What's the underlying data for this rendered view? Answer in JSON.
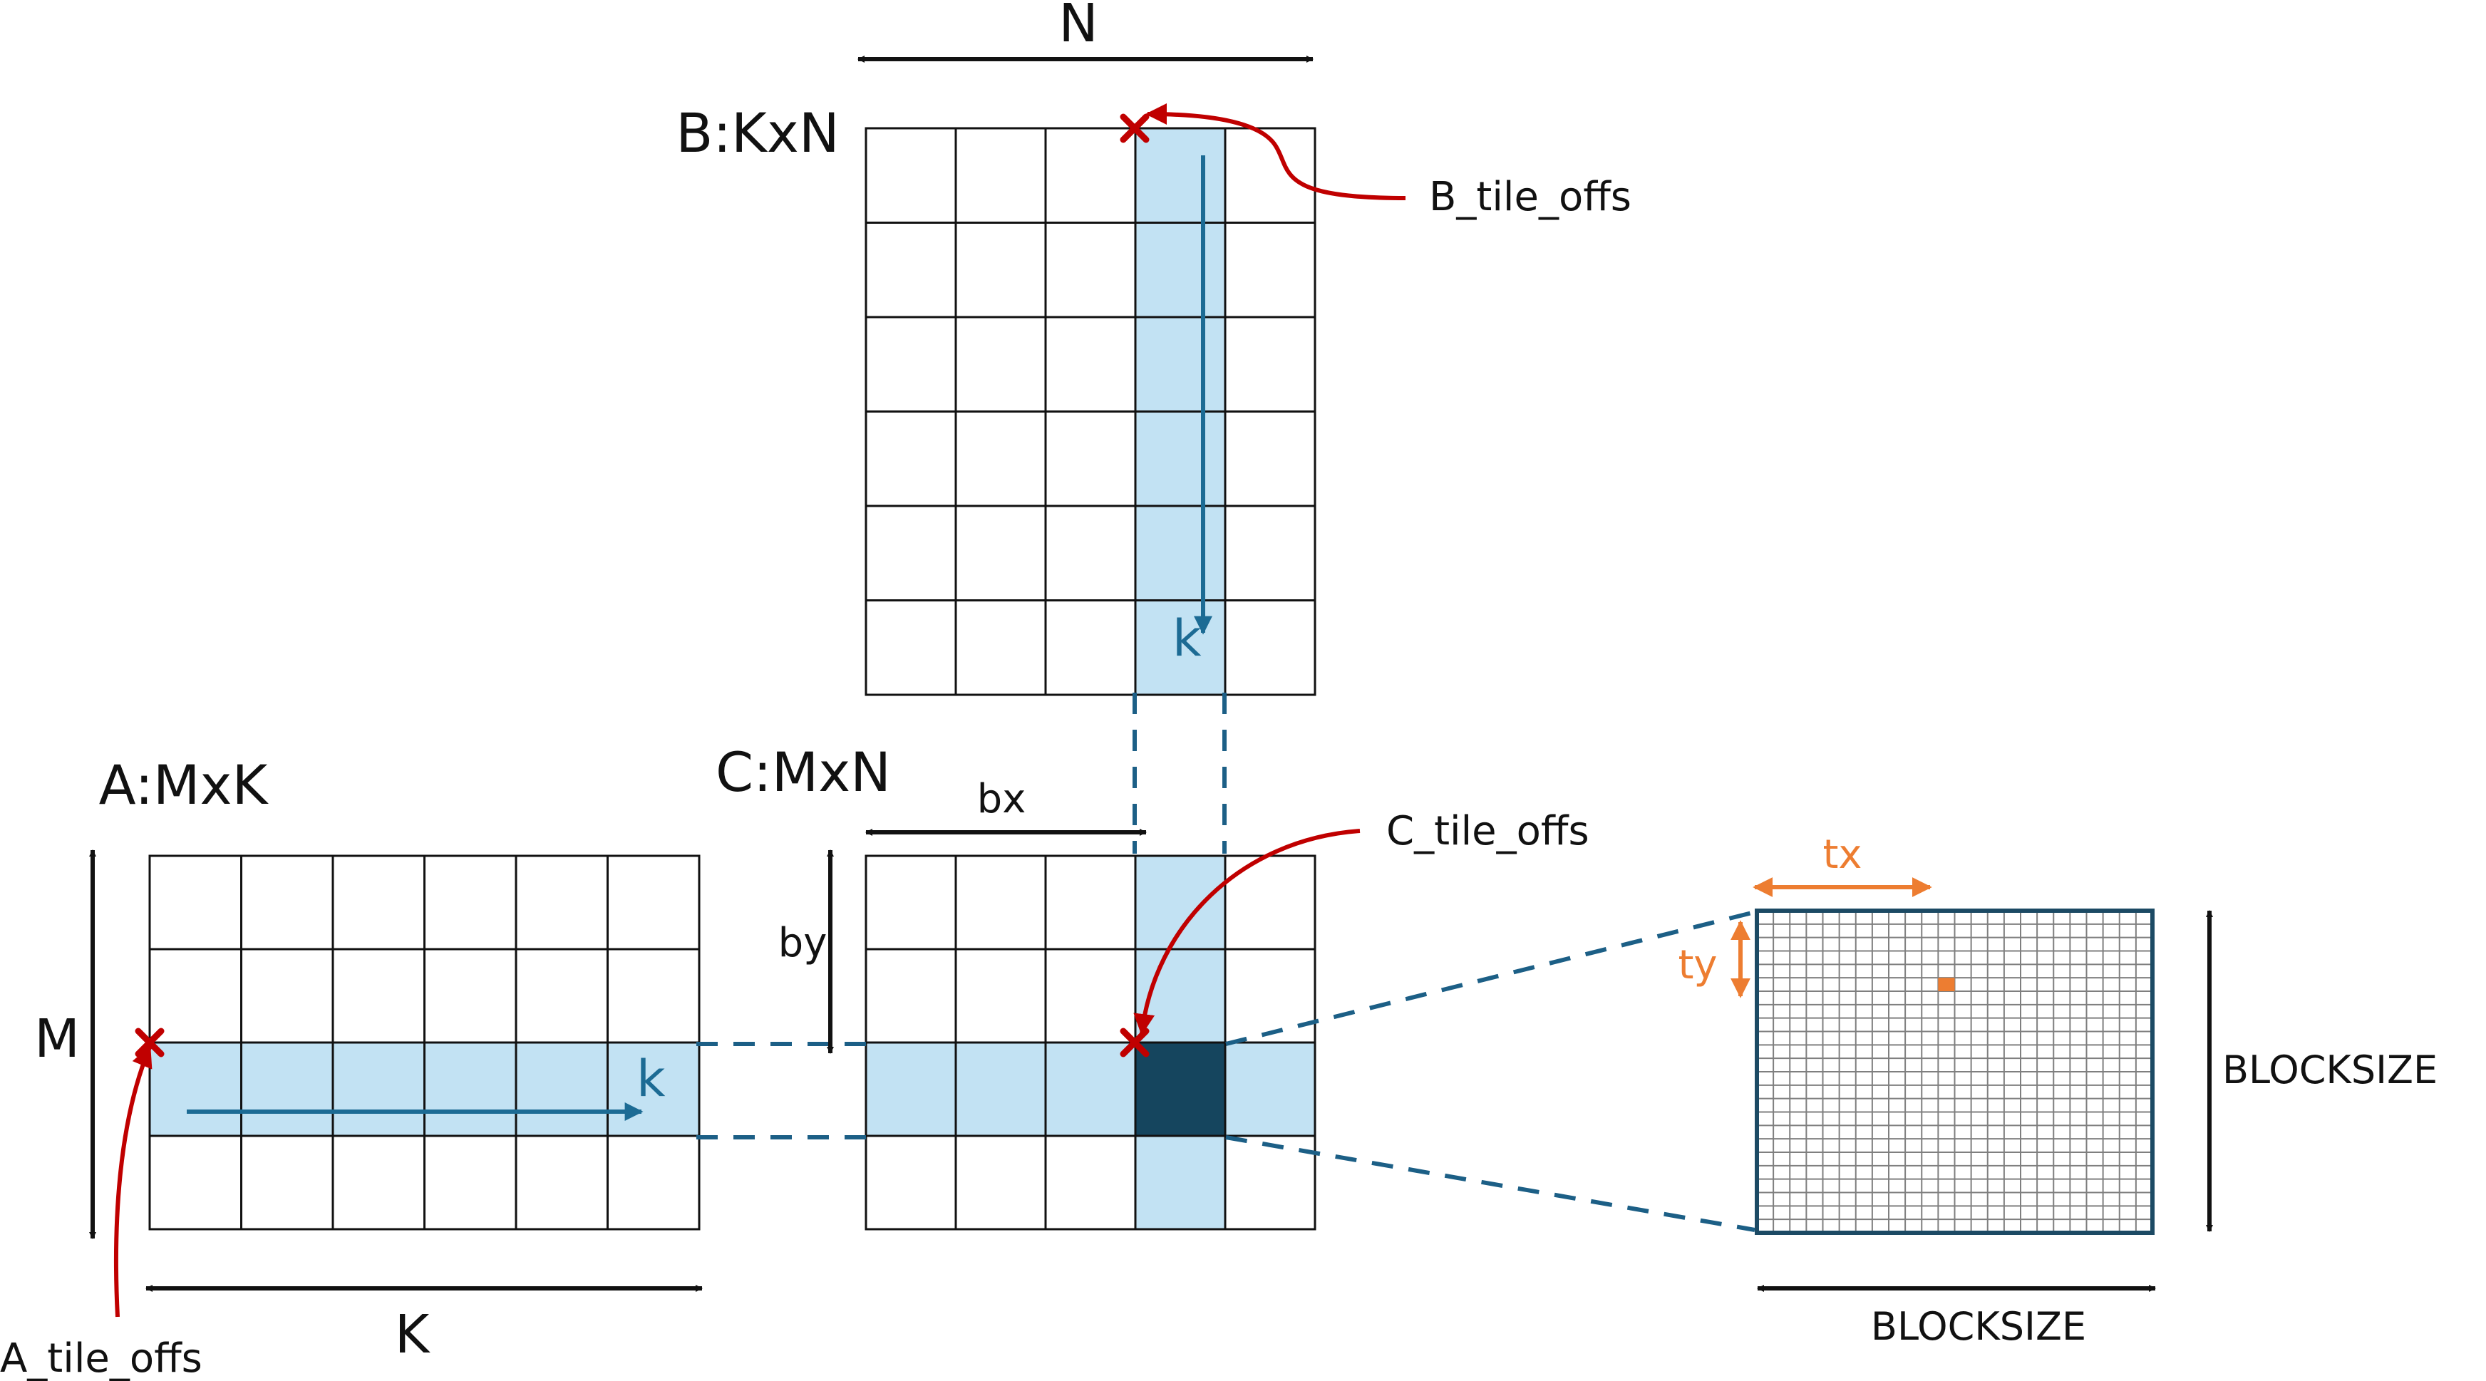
{
  "colors": {
    "tile_highlight": "#c2e2f3",
    "active_tile": "#15455e",
    "k_arrow": "#1c6b94",
    "marker": "#c00000",
    "orange": "#ed7d31",
    "grid": "#111111",
    "dashed_connector": "#1c5f86",
    "block_border": "#1c4a64"
  },
  "matrices": {
    "A": {
      "label": "A:MxK",
      "rows": 4,
      "cols": 6,
      "highlight_row_index": 2,
      "row_dimension_label": "M",
      "col_dimension_label": "K",
      "k_label": "k",
      "offset_label": "A_tile_offs",
      "offset_marker_icon": "x-mark-icon"
    },
    "B": {
      "label": "B:KxN",
      "rows": 6,
      "cols": 5,
      "highlight_col_index": 3,
      "col_dimension_label": "N",
      "k_label": "k",
      "offset_label": "B_tile_offs",
      "offset_marker_icon": "x-mark-icon"
    },
    "C": {
      "label": "C:MxN",
      "rows": 4,
      "cols": 5,
      "highlight_row_index": 2,
      "highlight_col_index": 3,
      "bx_label": "bx",
      "by_label": "by",
      "offset_label": "C_tile_offs",
      "offset_marker_icon": "x-mark-icon"
    }
  },
  "block": {
    "grid_cells": 24,
    "thread_cell_col": 11,
    "thread_cell_row": 5,
    "tx_label": "tx",
    "ty_label": "ty",
    "width_label": "BLOCKSIZE",
    "height_label": "BLOCKSIZE"
  }
}
